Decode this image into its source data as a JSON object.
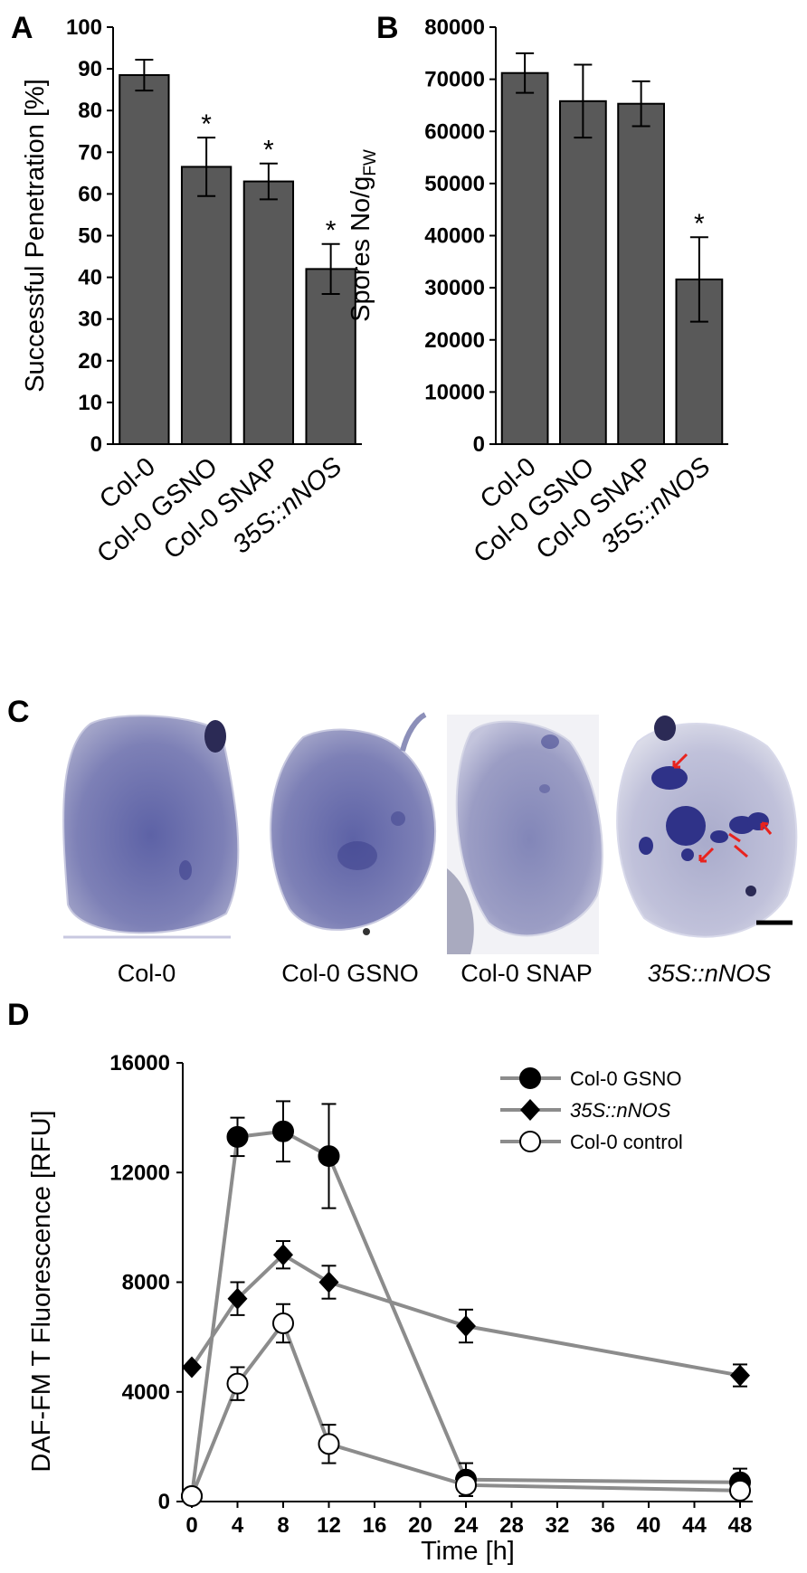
{
  "panels": {
    "A": "A",
    "B": "B",
    "C": "C",
    "D": "D"
  },
  "panel_c": {
    "captions": [
      {
        "plain": "Col-0",
        "italic": ""
      },
      {
        "plain": "Col-0 GSNO",
        "italic": ""
      },
      {
        "plain": "Col-0 SNAP",
        "italic": ""
      },
      {
        "plain": "",
        "italic": "35S::nNOS"
      }
    ],
    "leaf_color": "#6f73ad",
    "lesion_color": "#3c3f8c",
    "arrow_color": "#e8231e"
  },
  "chart_data": [
    {
      "id": "A",
      "type": "bar",
      "title": "",
      "ylabel": "Successful Penetration [%]",
      "xlabel": "",
      "ylim": [
        0,
        100
      ],
      "yticks": [
        0,
        10,
        20,
        30,
        40,
        50,
        60,
        70,
        80,
        90,
        100
      ],
      "categories": [
        {
          "plain": "Col-0",
          "italic": ""
        },
        {
          "plain": "Col-0 GSNO",
          "italic": ""
        },
        {
          "plain": "Col-0 SNAP",
          "italic": ""
        },
        {
          "plain": "",
          "italic": "35S::nNOS"
        }
      ],
      "values": [
        88.5,
        66.5,
        63,
        42
      ],
      "errors": [
        3.7,
        7,
        4.3,
        6
      ],
      "significance": [
        "",
        "*",
        "*",
        "*"
      ],
      "bar_color": "#595959",
      "grid": false
    },
    {
      "id": "B",
      "type": "bar",
      "title": "",
      "ylabel": "Spores No/g",
      "ylabel_subscript": "FW",
      "xlabel": "",
      "ylim": [
        0,
        80000
      ],
      "yticks": [
        0,
        10000,
        20000,
        30000,
        40000,
        50000,
        60000,
        70000,
        80000
      ],
      "categories": [
        {
          "plain": "Col-0",
          "italic": ""
        },
        {
          "plain": "Col-0 GSNO",
          "italic": ""
        },
        {
          "plain": "Col-0 SNAP",
          "italic": ""
        },
        {
          "plain": "",
          "italic": "35S::nNOS"
        }
      ],
      "values": [
        71200,
        65800,
        65300,
        31600
      ],
      "errors": [
        3800,
        7000,
        4300,
        8100
      ],
      "significance": [
        "",
        "",
        "",
        "*"
      ],
      "bar_color": "#595959",
      "grid": false
    },
    {
      "id": "D",
      "type": "line",
      "title": "",
      "ylabel": "DAF-FM T Fluorescence [RFU]",
      "xlabel": "Time [h]",
      "xlim": [
        0,
        48
      ],
      "ylim": [
        0,
        16000
      ],
      "xticks": [
        0,
        4,
        8,
        12,
        16,
        20,
        24,
        28,
        32,
        36,
        40,
        44,
        48
      ],
      "yticks": [
        0,
        4000,
        8000,
        12000,
        16000
      ],
      "legend_position": "top-right",
      "line_color": "#8c8c8c",
      "grid": false,
      "series": [
        {
          "name": "Col-0 GSNO",
          "marker": "filled-circle",
          "italic": false,
          "x": [
            0,
            4,
            8,
            12,
            24,
            48
          ],
          "y": [
            200,
            13300,
            13500,
            12600,
            800,
            700
          ],
          "errors": [
            0,
            700,
            1100,
            1900,
            600,
            500
          ]
        },
        {
          "name": "35S::nNOS",
          "marker": "filled-diamond",
          "italic": true,
          "x": [
            0,
            4,
            8,
            12,
            24,
            48
          ],
          "y": [
            4900,
            7400,
            9000,
            8000,
            6400,
            4600
          ],
          "errors": [
            0,
            600,
            500,
            600,
            600,
            400
          ]
        },
        {
          "name": "Col-0 control",
          "marker": "open-circle",
          "italic": false,
          "x": [
            0,
            4,
            8,
            12,
            24,
            48
          ],
          "y": [
            200,
            4300,
            6500,
            2100,
            600,
            400
          ],
          "errors": [
            0,
            600,
            700,
            700,
            400,
            400
          ]
        }
      ]
    }
  ]
}
